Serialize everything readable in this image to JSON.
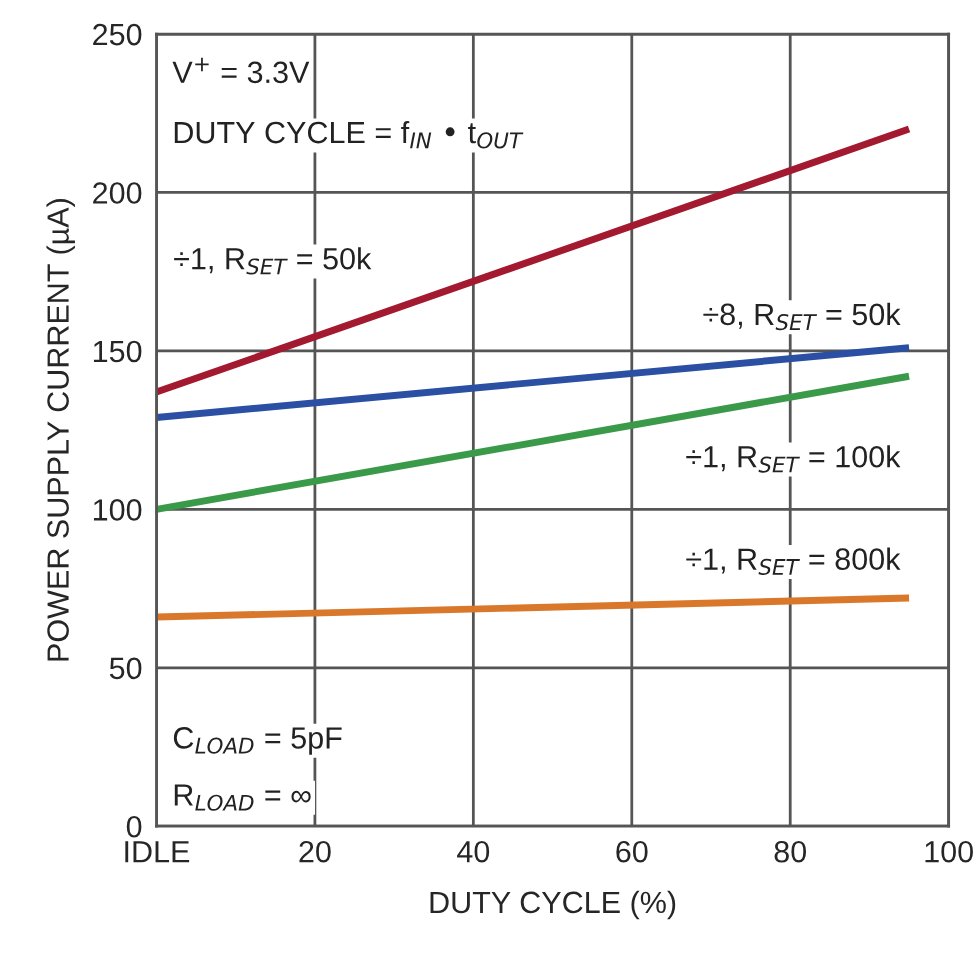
{
  "chart_data": {
    "type": "line",
    "xlabel": "DUTY CYCLE (%)",
    "ylabel": "POWER SUPPLY CURRENT (µA)",
    "x": [
      0,
      95
    ],
    "series": [
      {
        "name": "÷1, R$_{SET}$ = 50k",
        "color": "#a3192f",
        "values": [
          137,
          220
        ]
      },
      {
        "name": "÷8, R$_{SET}$ = 50k",
        "color": "#2b4fa3",
        "values": [
          129,
          151
        ]
      },
      {
        "name": "÷1, R$_{SET}$ = 100k",
        "color": "#3a9a4a",
        "values": [
          100,
          142
        ]
      },
      {
        "name": "÷1, R$_{SET}$ = 800k",
        "color": "#d9782b",
        "values": [
          66,
          72
        ]
      }
    ],
    "xlim": [
      0,
      100
    ],
    "xticks": [
      {
        "value": 0,
        "label": "IDLE"
      },
      20,
      40,
      60,
      80,
      100
    ],
    "ylim": [
      0,
      250
    ],
    "yticks": [
      0,
      50,
      100,
      150,
      200,
      250
    ],
    "grid": true,
    "marker": "none",
    "line_style": "solid",
    "annotations": [
      "V$^{+}$ = 3.3V",
      "DUTY CYCLE = f$_{IN}$ • t$_{OUT}$",
      "C$_{LOAD}$ = 5pF",
      "R$_{LOAD}$ = ∞"
    ]
  }
}
